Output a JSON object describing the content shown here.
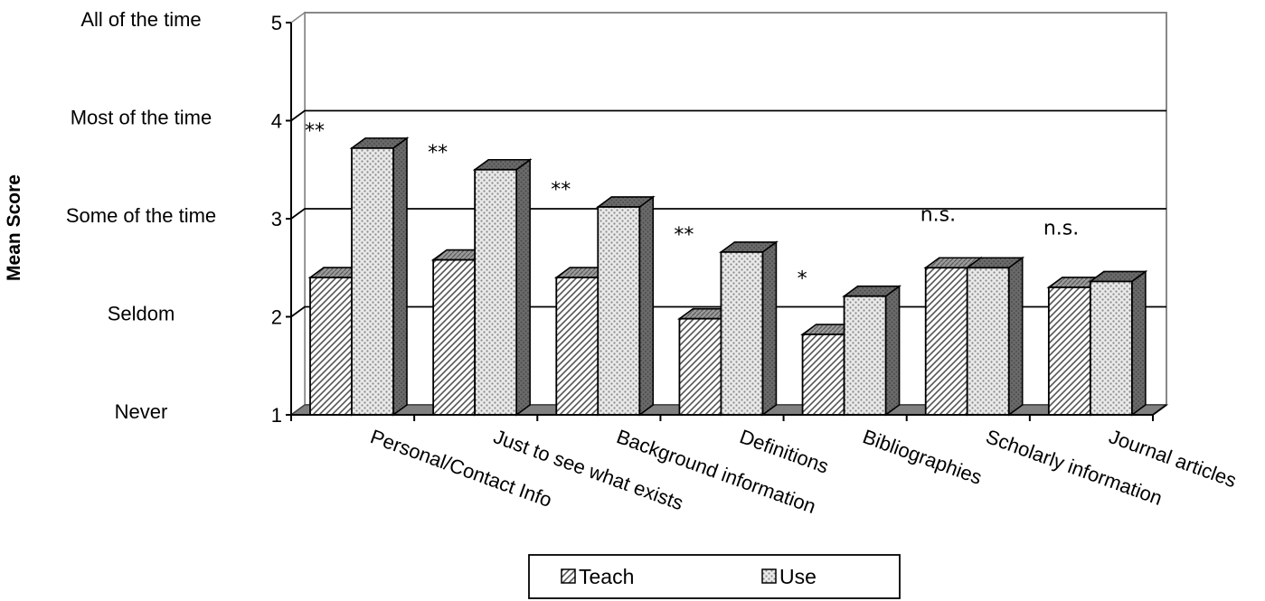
{
  "chart_data": {
    "type": "bar",
    "title": "",
    "xlabel": "",
    "ylabel": "Mean Score",
    "ylim": [
      1,
      5
    ],
    "y_ticks": [
      1,
      2,
      3,
      4,
      5
    ],
    "y_tick_text": [
      "Never",
      "Seldom",
      "Some of the time",
      "Most of the time",
      "All of the time"
    ],
    "grid": true,
    "three_d": true,
    "legend_position": "bottom",
    "categories": [
      "Personal/Contact Info",
      "Just to see what exists",
      "Background information",
      "Definitions",
      "Bibliographies",
      "Scholarly information",
      "Journal articles"
    ],
    "series": [
      {
        "name": "Teach",
        "values": [
          2.4,
          2.58,
          2.4,
          1.98,
          1.82,
          2.5,
          2.3
        ],
        "pattern": "diagonal-hatch"
      },
      {
        "name": "Use",
        "values": [
          3.72,
          3.5,
          3.12,
          2.66,
          2.21,
          2.5,
          2.36
        ],
        "pattern": "dotted"
      }
    ],
    "annotations": [
      "**",
      "**",
      "**",
      "**",
      "*",
      "n.s.",
      "n.s."
    ]
  },
  "colors": {
    "floor": "#808080",
    "grid": "#000000",
    "bar_outline": "#000000",
    "hatch_line": "#555555",
    "dot": "#888888",
    "side_fill": "#5c5c5c"
  }
}
